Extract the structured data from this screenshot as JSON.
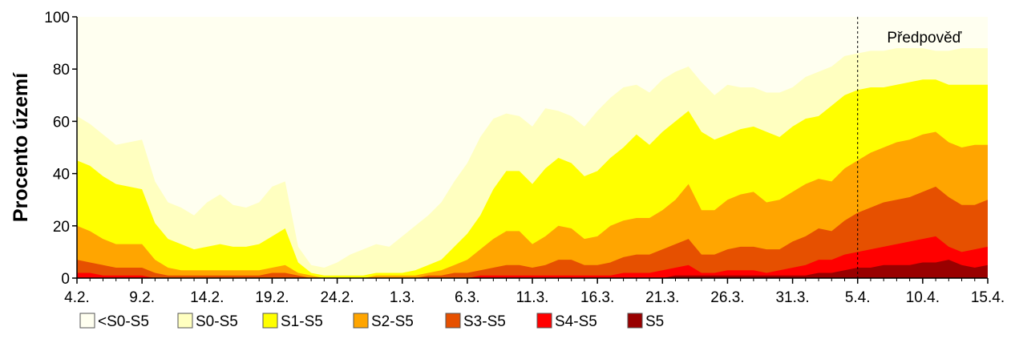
{
  "chart_data": {
    "type": "area",
    "stacked": false,
    "title": "",
    "xlabel": "",
    "ylabel": "Procento území",
    "ylim": [
      0,
      100
    ],
    "yticks": [
      0,
      20,
      40,
      60,
      80,
      100
    ],
    "grid": false,
    "legend_position": "bottom",
    "x_start": "4.2.",
    "x_end": "15.4.",
    "x_step_days": 1,
    "x_tick_labels": [
      "4.2.",
      "9.2.",
      "14.2.",
      "19.2.",
      "24.2.",
      "1.3.",
      "6.3.",
      "11.3.",
      "16.3.",
      "21.3.",
      "26.3.",
      "31.3.",
      "5.4.",
      "10.4.",
      "15.4."
    ],
    "annotation": {
      "text": "Předpověď",
      "from_label": "5.4."
    },
    "series": [
      {
        "name": "<S0-S5",
        "color": "#fffff0",
        "values": [
          100,
          100,
          100,
          100,
          100,
          100,
          100,
          100,
          100,
          100,
          100,
          100,
          100,
          100,
          100,
          100,
          100,
          100,
          100,
          100,
          100,
          100,
          100,
          100,
          100,
          100,
          100,
          100,
          100,
          100,
          100,
          100,
          100,
          100,
          100,
          100,
          100,
          100,
          100,
          100,
          100,
          100,
          100,
          100,
          100,
          100,
          100,
          100,
          100,
          100,
          100,
          100,
          100,
          100,
          100,
          100,
          100,
          100,
          100,
          100,
          100,
          100,
          100,
          100,
          100,
          100,
          100,
          100,
          100,
          100,
          100
        ]
      },
      {
        "name": "S0-S5",
        "color": "#ffffc0",
        "values": [
          62,
          59,
          55,
          51,
          52,
          53,
          37,
          29,
          27,
          24,
          29,
          32,
          28,
          27,
          29,
          35,
          37,
          12,
          5,
          4,
          6,
          9,
          11,
          13,
          12,
          16,
          20,
          24,
          29,
          37,
          44,
          54,
          61,
          63,
          62,
          58,
          65,
          64,
          62,
          58,
          64,
          69,
          73,
          74,
          71,
          76,
          79,
          81,
          75,
          70,
          74,
          73,
          73,
          71,
          71,
          73,
          77,
          79,
          81,
          85,
          86,
          87,
          87,
          88,
          88,
          88,
          87,
          87,
          88,
          88,
          88
        ]
      },
      {
        "name": "S1-S5",
        "color": "#ffff00",
        "values": [
          45,
          43,
          39,
          36,
          35,
          34,
          21,
          15,
          13,
          11,
          12,
          13,
          12,
          12,
          13,
          16,
          19,
          6,
          2,
          1,
          1,
          1,
          1,
          2,
          2,
          2,
          3,
          5,
          7,
          12,
          17,
          24,
          34,
          41,
          41,
          36,
          42,
          46,
          44,
          39,
          41,
          46,
          50,
          55,
          51,
          56,
          60,
          64,
          56,
          53,
          55,
          57,
          58,
          56,
          54,
          58,
          61,
          62,
          66,
          70,
          72,
          73,
          73,
          74,
          75,
          76,
          76,
          74,
          74,
          74,
          74
        ]
      },
      {
        "name": "S2-S5",
        "color": "#ffa500",
        "values": [
          20,
          18,
          15,
          13,
          13,
          13,
          7,
          4,
          3,
          3,
          3,
          3,
          3,
          3,
          3,
          4,
          5,
          2,
          1,
          0,
          0,
          0,
          0,
          1,
          1,
          1,
          1,
          2,
          3,
          5,
          7,
          11,
          15,
          18,
          18,
          13,
          16,
          20,
          19,
          15,
          16,
          20,
          22,
          23,
          23,
          26,
          30,
          36,
          26,
          26,
          30,
          32,
          33,
          29,
          30,
          33,
          36,
          38,
          37,
          42,
          45,
          48,
          50,
          52,
          53,
          55,
          56,
          52,
          50,
          51,
          51
        ]
      },
      {
        "name": "S3-S5",
        "color": "#e65000",
        "values": [
          7,
          6,
          5,
          4,
          4,
          4,
          2,
          1,
          1,
          1,
          1,
          1,
          1,
          1,
          1,
          2,
          2,
          1,
          0,
          0,
          0,
          0,
          0,
          0,
          0,
          0,
          0,
          1,
          1,
          2,
          2,
          3,
          4,
          5,
          5,
          4,
          5,
          7,
          7,
          5,
          5,
          6,
          8,
          9,
          9,
          11,
          13,
          15,
          9,
          9,
          11,
          12,
          12,
          11,
          11,
          14,
          16,
          19,
          18,
          22,
          25,
          27,
          29,
          30,
          31,
          33,
          35,
          31,
          28,
          28,
          30
        ]
      },
      {
        "name": "S4-S5",
        "color": "#ff0000",
        "values": [
          2,
          2,
          1,
          1,
          1,
          1,
          0,
          0,
          0,
          0,
          0,
          0,
          0,
          0,
          0,
          0,
          0,
          0,
          0,
          0,
          0,
          0,
          0,
          0,
          0,
          0,
          0,
          0,
          0,
          0,
          0,
          1,
          1,
          1,
          1,
          1,
          1,
          1,
          1,
          1,
          1,
          1,
          2,
          2,
          2,
          3,
          4,
          5,
          2,
          2,
          3,
          3,
          3,
          2,
          3,
          4,
          5,
          7,
          7,
          9,
          10,
          11,
          12,
          13,
          14,
          15,
          16,
          12,
          10,
          11,
          12
        ]
      },
      {
        "name": "S5",
        "color": "#990000",
        "values": [
          0,
          0,
          0,
          0,
          0,
          0,
          0,
          0,
          0,
          0,
          0,
          0,
          0,
          0,
          0,
          0,
          0,
          0,
          0,
          0,
          0,
          0,
          0,
          0,
          0,
          0,
          0,
          0,
          0,
          0,
          0,
          0,
          0,
          0,
          0,
          0,
          0,
          0,
          0,
          0,
          0,
          0,
          0,
          0,
          0,
          0,
          1,
          1,
          1,
          1,
          1,
          1,
          1,
          1,
          1,
          1,
          1,
          2,
          2,
          3,
          4,
          4,
          5,
          5,
          5,
          6,
          6,
          7,
          5,
          4,
          5
        ]
      }
    ]
  }
}
